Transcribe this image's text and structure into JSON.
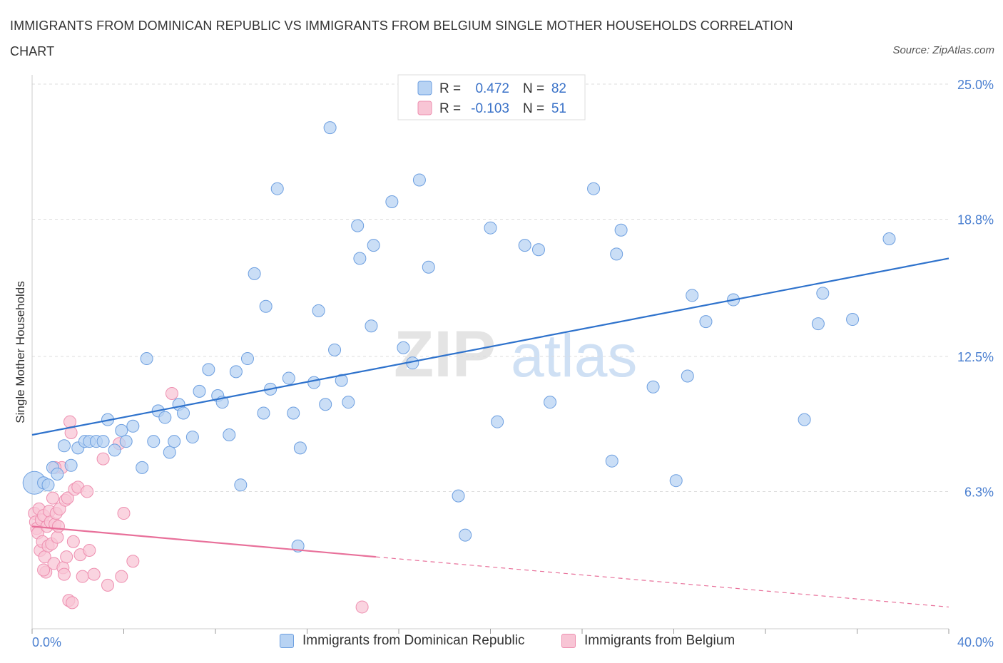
{
  "title": "IMMIGRANTS FROM DOMINICAN REPUBLIC VS IMMIGRANTS FROM BELGIUM SINGLE MOTHER HOUSEHOLDS CORRELATION CHART",
  "source": "Source: ZipAtlas.com",
  "watermark": {
    "zip": "ZIP",
    "atlas": "atlas"
  },
  "legend": {
    "rows": [
      {
        "r_label": "R =",
        "r_value": "0.472",
        "n_label": "N =",
        "n_value": "82"
      },
      {
        "r_label": "R =",
        "r_value": "-0.103",
        "n_label": "N =",
        "n_value": "51"
      }
    ]
  },
  "bottom_legend": {
    "series1": "Immigrants from Dominican Republic",
    "series2": "Immigrants from Belgium"
  },
  "colors": {
    "blue_fill": "#b8d3f3",
    "blue_stroke": "#6d9fe0",
    "blue_line": "#2e72cc",
    "pink_fill": "#f8c5d5",
    "pink_stroke": "#ee8fb0",
    "pink_line": "#e8709a",
    "tick_text": "#4a7fd0",
    "grid": "#dddddd"
  },
  "chart_data": {
    "type": "scatter",
    "title": "IMMIGRANTS FROM DOMINICAN REPUBLIC VS IMMIGRANTS FROM BELGIUM SINGLE MOTHER HOUSEHOLDS CORRELATION CHART",
    "xlabel": "",
    "ylabel": "Single Mother Households",
    "xlim": [
      0,
      40
    ],
    "ylim": [
      0,
      25
    ],
    "x_tick_labels": [
      "0.0%",
      "40.0%"
    ],
    "y_ticks": [
      6.3,
      12.5,
      18.8,
      25.0
    ],
    "y_tick_labels": [
      "6.3%",
      "12.5%",
      "18.8%",
      "25.0%"
    ],
    "grid": true,
    "legend_position": "top-center",
    "series": [
      {
        "name": "Immigrants from Dominican Republic",
        "r": 0.472,
        "n": 82,
        "trend": {
          "x0": 0,
          "y0": 8.9,
          "x1": 40,
          "y1": 17.0
        },
        "points": [
          [
            0.1,
            6.7
          ],
          [
            0.5,
            6.7
          ],
          [
            0.7,
            6.6
          ],
          [
            0.9,
            7.4
          ],
          [
            1.1,
            7.1
          ],
          [
            1.4,
            8.4
          ],
          [
            1.7,
            7.5
          ],
          [
            2.0,
            8.3
          ],
          [
            2.3,
            8.6
          ],
          [
            2.5,
            8.6
          ],
          [
            2.8,
            8.6
          ],
          [
            3.1,
            8.6
          ],
          [
            3.3,
            9.6
          ],
          [
            3.6,
            8.2
          ],
          [
            3.9,
            9.1
          ],
          [
            4.1,
            8.6
          ],
          [
            4.4,
            9.3
          ],
          [
            4.8,
            7.4
          ],
          [
            5.0,
            12.4
          ],
          [
            5.3,
            8.6
          ],
          [
            5.5,
            10.0
          ],
          [
            5.8,
            9.7
          ],
          [
            6.0,
            8.1
          ],
          [
            6.2,
            8.6
          ],
          [
            6.4,
            10.3
          ],
          [
            6.6,
            9.9
          ],
          [
            7.0,
            8.8
          ],
          [
            7.3,
            10.9
          ],
          [
            7.7,
            11.9
          ],
          [
            8.1,
            10.7
          ],
          [
            8.3,
            10.4
          ],
          [
            8.6,
            8.9
          ],
          [
            8.9,
            11.8
          ],
          [
            9.1,
            6.6
          ],
          [
            9.4,
            12.4
          ],
          [
            9.7,
            16.3
          ],
          [
            10.1,
            9.9
          ],
          [
            10.2,
            14.8
          ],
          [
            10.4,
            11.0
          ],
          [
            10.7,
            20.2
          ],
          [
            11.2,
            11.5
          ],
          [
            11.4,
            9.9
          ],
          [
            11.6,
            3.8
          ],
          [
            11.7,
            8.3
          ],
          [
            12.3,
            11.3
          ],
          [
            12.5,
            14.6
          ],
          [
            12.8,
            10.3
          ],
          [
            13.0,
            23.0
          ],
          [
            13.2,
            12.8
          ],
          [
            13.5,
            11.4
          ],
          [
            13.8,
            10.4
          ],
          [
            14.2,
            18.5
          ],
          [
            14.3,
            17.0
          ],
          [
            14.8,
            13.9
          ],
          [
            14.9,
            17.6
          ],
          [
            15.7,
            19.6
          ],
          [
            16.2,
            12.9
          ],
          [
            16.6,
            12.2
          ],
          [
            16.9,
            20.6
          ],
          [
            17.3,
            16.6
          ],
          [
            18.6,
            6.1
          ],
          [
            18.9,
            4.3
          ],
          [
            20.0,
            18.4
          ],
          [
            20.3,
            9.5
          ],
          [
            21.5,
            17.6
          ],
          [
            22.1,
            17.4
          ],
          [
            22.6,
            10.4
          ],
          [
            24.5,
            20.2
          ],
          [
            25.3,
            7.7
          ],
          [
            25.5,
            17.2
          ],
          [
            25.7,
            18.3
          ],
          [
            27.1,
            11.1
          ],
          [
            28.1,
            6.8
          ],
          [
            28.6,
            11.6
          ],
          [
            28.8,
            15.3
          ],
          [
            29.4,
            14.1
          ],
          [
            30.6,
            15.1
          ],
          [
            33.7,
            9.6
          ],
          [
            34.3,
            14.0
          ],
          [
            34.5,
            15.4
          ],
          [
            35.8,
            14.2
          ],
          [
            37.4,
            17.9
          ]
        ]
      },
      {
        "name": "Immigrants from Belgium",
        "r": -0.103,
        "n": 51,
        "trend": {
          "x0": 0,
          "y0": 4.7,
          "x1": 15.0,
          "y1": 3.3,
          "dash_x1": 40,
          "dash_y1": 1.0
        },
        "points": [
          [
            0.1,
            5.3
          ],
          [
            0.15,
            4.9
          ],
          [
            0.2,
            4.6
          ],
          [
            0.25,
            4.4
          ],
          [
            0.3,
            5.5
          ],
          [
            0.35,
            3.6
          ],
          [
            0.4,
            5.0
          ],
          [
            0.45,
            4.0
          ],
          [
            0.5,
            5.2
          ],
          [
            0.55,
            3.3
          ],
          [
            0.6,
            2.6
          ],
          [
            0.65,
            4.7
          ],
          [
            0.7,
            3.8
          ],
          [
            0.75,
            5.4
          ],
          [
            0.8,
            4.9
          ],
          [
            0.85,
            3.9
          ],
          [
            0.9,
            6.0
          ],
          [
            0.95,
            3.0
          ],
          [
            1.0,
            4.8
          ],
          [
            1.05,
            5.3
          ],
          [
            1.1,
            4.2
          ],
          [
            1.15,
            4.7
          ],
          [
            1.2,
            5.5
          ],
          [
            1.3,
            7.4
          ],
          [
            1.35,
            2.8
          ],
          [
            1.4,
            2.5
          ],
          [
            1.45,
            5.9
          ],
          [
            1.5,
            3.3
          ],
          [
            1.55,
            6.0
          ],
          [
            1.6,
            1.3
          ],
          [
            1.65,
            9.5
          ],
          [
            1.7,
            9.0
          ],
          [
            1.75,
            1.2
          ],
          [
            1.8,
            4.0
          ],
          [
            1.85,
            6.4
          ],
          [
            2.0,
            6.5
          ],
          [
            2.1,
            3.4
          ],
          [
            2.2,
            2.4
          ],
          [
            2.4,
            6.3
          ],
          [
            2.5,
            3.6
          ],
          [
            2.7,
            2.5
          ],
          [
            3.1,
            7.8
          ],
          [
            3.3,
            2.0
          ],
          [
            3.8,
            8.5
          ],
          [
            3.9,
            2.4
          ],
          [
            4.0,
            5.3
          ],
          [
            4.4,
            3.1
          ],
          [
            6.1,
            10.8
          ],
          [
            14.4,
            1.0
          ],
          [
            0.5,
            2.7
          ],
          [
            1.0,
            7.4
          ]
        ]
      }
    ]
  }
}
